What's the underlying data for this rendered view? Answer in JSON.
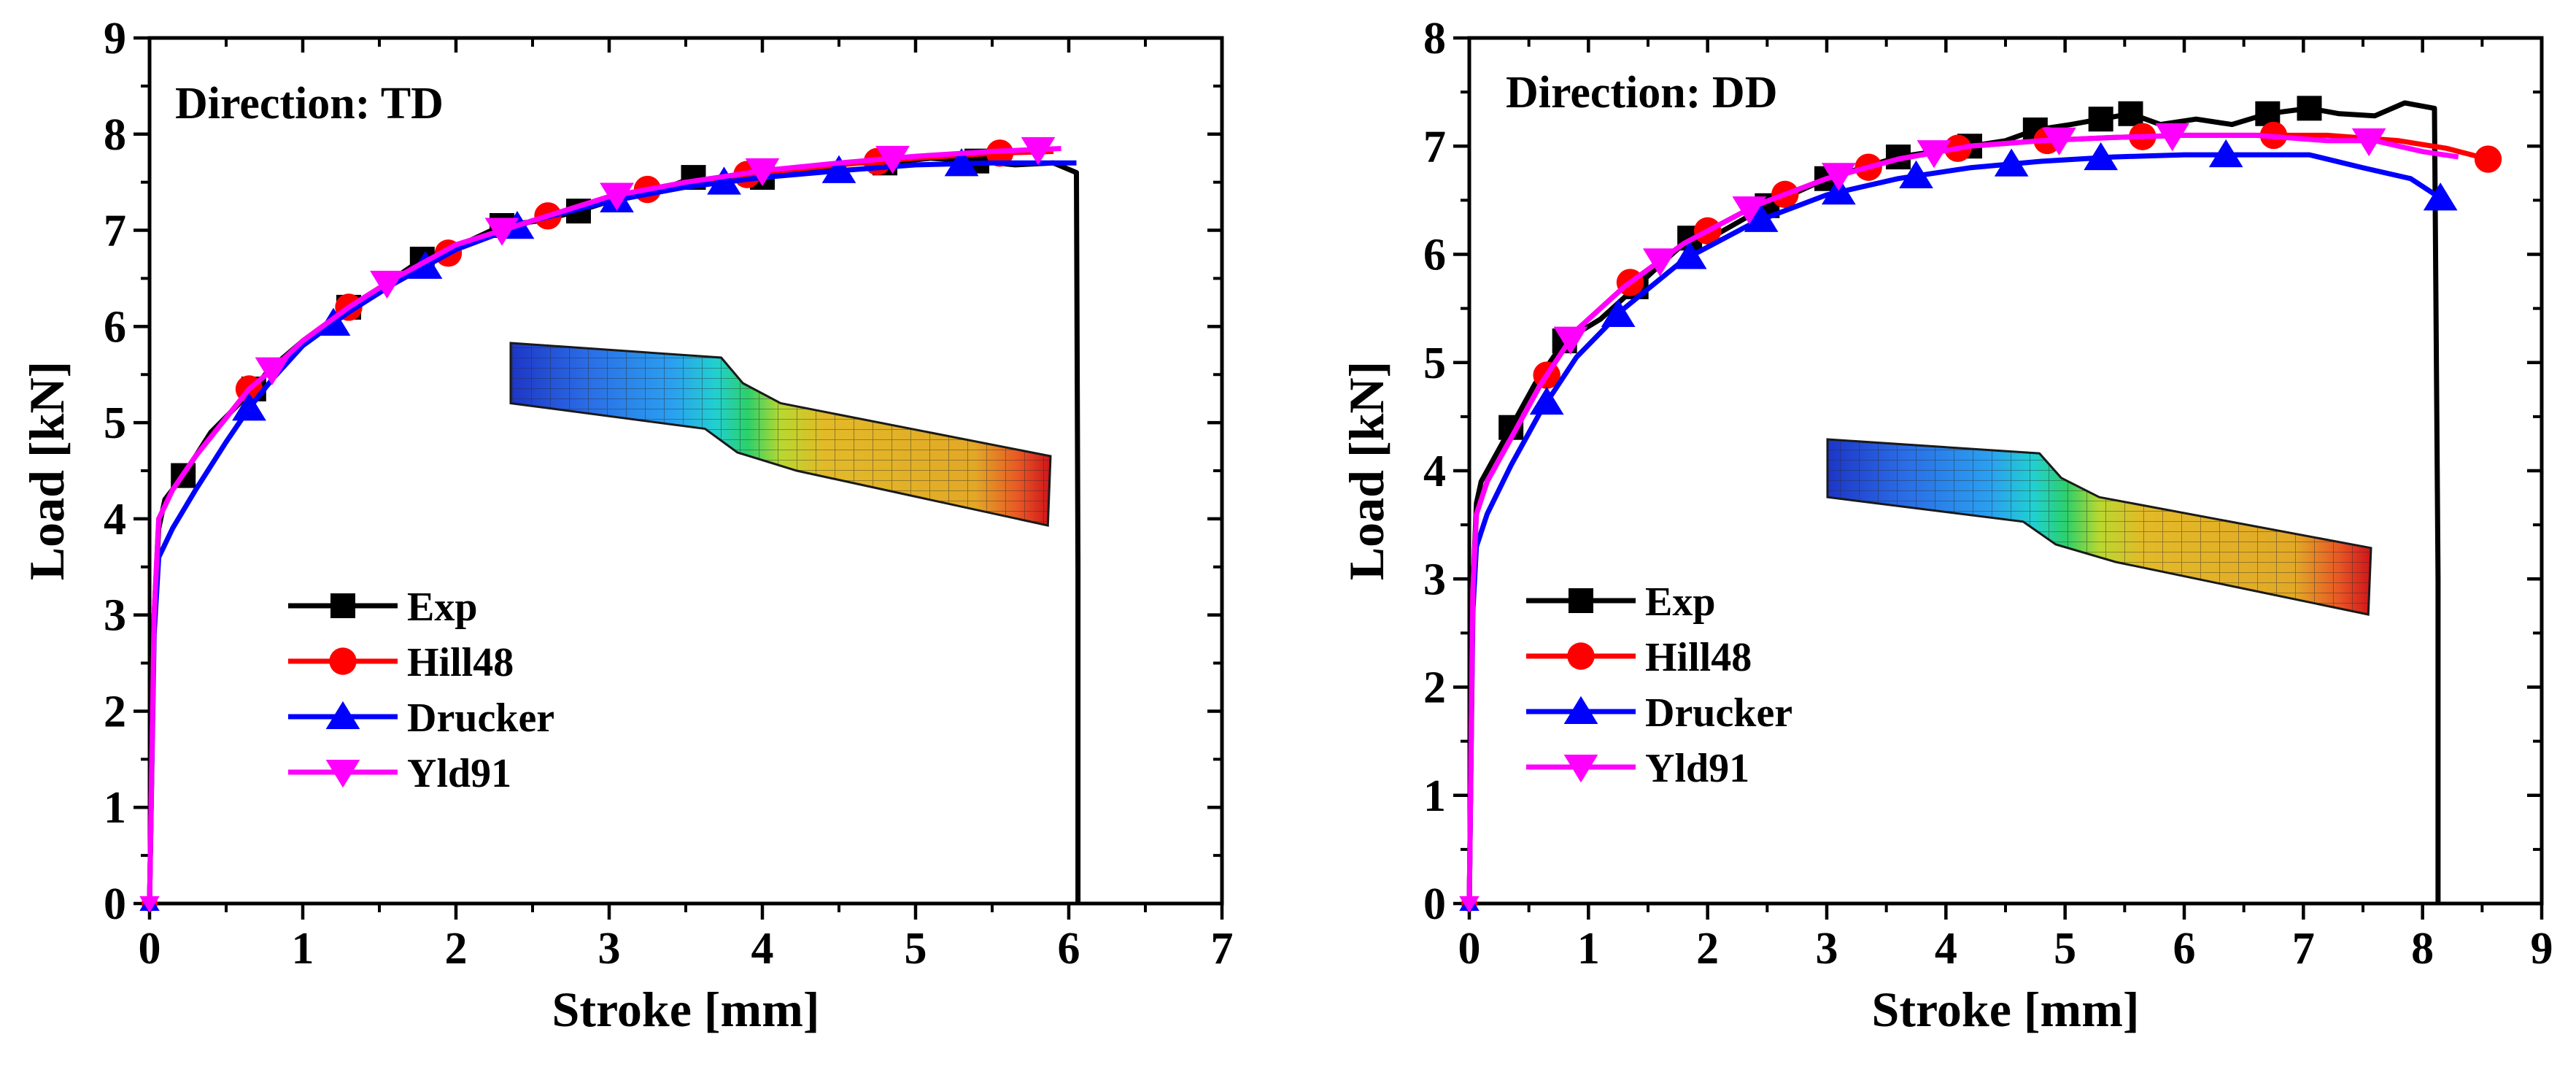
{
  "chart_data": [
    {
      "type": "line",
      "annotation": "Direction: TD",
      "xlabel": "Stroke [mm]",
      "ylabel": "Load [kN]",
      "xlim": [
        0,
        7
      ],
      "ylim": [
        0,
        9
      ],
      "xticks": [
        0,
        1,
        2,
        3,
        4,
        5,
        6,
        7
      ],
      "yticks": [
        0,
        1,
        2,
        3,
        4,
        5,
        6,
        7,
        8,
        9
      ],
      "legend_position": "center-left",
      "inset": "finite-element specimen mesh contour (decorative)",
      "series": [
        {
          "name": "Exp",
          "color": "#000000",
          "marker": "square",
          "x": [
            0,
            0.03,
            0.06,
            0.1,
            0.22,
            0.4,
            0.68,
            0.78,
            1.0,
            1.3,
            1.55,
            1.78,
            2.1,
            2.3,
            2.55,
            2.8,
            3.1,
            3.3,
            3.55,
            3.75,
            4.0,
            4.3,
            4.55,
            4.8,
            5.1,
            5.4,
            5.65,
            5.9,
            6.05,
            6.06,
            6.06
          ],
          "y": [
            0,
            3.0,
            3.9,
            4.2,
            4.45,
            4.9,
            5.35,
            5.55,
            5.85,
            6.2,
            6.45,
            6.7,
            6.9,
            7.05,
            7.1,
            7.2,
            7.35,
            7.4,
            7.55,
            7.5,
            7.55,
            7.6,
            7.7,
            7.7,
            7.75,
            7.72,
            7.68,
            7.7,
            7.6,
            3.5,
            0
          ],
          "marker_x": [
            0.22,
            0.68,
            1.3,
            1.78,
            2.3,
            2.8,
            3.55,
            4.0,
            4.8,
            5.4
          ]
        },
        {
          "name": "Hill48",
          "color": "#ff0000",
          "marker": "circle",
          "x": [
            0,
            0.03,
            0.06,
            0.15,
            0.3,
            0.5,
            0.65,
            0.8,
            1.0,
            1.3,
            1.6,
            2.0,
            2.5,
            3.0,
            3.5,
            4.0,
            4.5,
            5.0,
            5.5,
            5.9
          ],
          "y": [
            0,
            3.0,
            4.0,
            4.3,
            4.65,
            5.05,
            5.35,
            5.55,
            5.85,
            6.2,
            6.5,
            6.8,
            7.1,
            7.35,
            7.5,
            7.6,
            7.68,
            7.75,
            7.8,
            7.82
          ],
          "marker_x": [
            0.65,
            1.3,
            1.95,
            2.6,
            3.25,
            3.9,
            4.75,
            5.55
          ]
        },
        {
          "name": "Drucker",
          "color": "#0000ff",
          "marker": "triangle-up",
          "x": [
            0,
            0.03,
            0.06,
            0.15,
            0.3,
            0.5,
            0.65,
            0.8,
            1.0,
            1.3,
            1.6,
            2.0,
            2.5,
            3.0,
            3.5,
            4.0,
            4.5,
            5.0,
            5.5,
            6.05
          ],
          "y": [
            0,
            2.8,
            3.6,
            3.9,
            4.3,
            4.8,
            5.15,
            5.45,
            5.8,
            6.15,
            6.45,
            6.8,
            7.1,
            7.3,
            7.45,
            7.55,
            7.62,
            7.68,
            7.7,
            7.7
          ],
          "marker_x": [
            0.65,
            1.2,
            1.8,
            2.4,
            3.05,
            3.75,
            4.5,
            5.3
          ]
        },
        {
          "name": "Yld91",
          "color": "#ff00ff",
          "marker": "triangle-down",
          "x": [
            0,
            0.03,
            0.06,
            0.15,
            0.3,
            0.5,
            0.65,
            0.8,
            1.0,
            1.3,
            1.6,
            2.0,
            2.5,
            3.0,
            3.5,
            4.0,
            4.5,
            5.0,
            5.5,
            5.95
          ],
          "y": [
            0,
            3.0,
            4.0,
            4.3,
            4.65,
            5.05,
            5.35,
            5.55,
            5.85,
            6.2,
            6.5,
            6.85,
            7.1,
            7.35,
            7.5,
            7.62,
            7.7,
            7.77,
            7.82,
            7.85
          ],
          "marker_x": [
            0.8,
            1.55,
            2.3,
            3.05,
            4.0,
            4.85,
            5.8
          ]
        }
      ]
    },
    {
      "type": "line",
      "annotation": "Direction: DD",
      "xlabel": "Stroke [mm]",
      "ylabel": "Load [kN]",
      "xlim": [
        0,
        9
      ],
      "ylim": [
        0,
        8
      ],
      "xticks": [
        0,
        1,
        2,
        3,
        4,
        5,
        6,
        7,
        8,
        9
      ],
      "yticks": [
        0,
        1,
        2,
        3,
        4,
        5,
        6,
        7,
        8
      ],
      "legend_position": "center-left",
      "inset": "finite-element specimen mesh contour (decorative)",
      "series": [
        {
          "name": "Exp",
          "color": "#000000",
          "marker": "square",
          "x": [
            0,
            0.03,
            0.06,
            0.1,
            0.35,
            0.55,
            0.8,
            1.1,
            1.4,
            1.6,
            1.85,
            2.1,
            2.5,
            2.8,
            3.0,
            3.3,
            3.6,
            3.9,
            4.2,
            4.5,
            4.75,
            5.05,
            5.3,
            5.55,
            5.8,
            6.1,
            6.4,
            6.7,
            7.05,
            7.3,
            7.6,
            7.85,
            8.1,
            8.13,
            8.13
          ],
          "y": [
            0,
            2.9,
            3.7,
            3.9,
            4.4,
            4.8,
            5.2,
            5.4,
            5.7,
            5.9,
            6.15,
            6.2,
            6.45,
            6.6,
            6.7,
            6.8,
            6.9,
            6.95,
            7.0,
            7.05,
            7.15,
            7.2,
            7.25,
            7.3,
            7.2,
            7.25,
            7.2,
            7.3,
            7.35,
            7.3,
            7.28,
            7.4,
            7.35,
            3.0,
            0
          ],
          "marker_x": [
            0.35,
            0.8,
            1.4,
            1.85,
            2.5,
            3.0,
            3.6,
            4.2,
            4.75,
            5.3,
            5.55,
            6.7,
            7.05
          ]
        },
        {
          "name": "Hill48",
          "color": "#ff0000",
          "marker": "circle",
          "x": [
            0,
            0.03,
            0.06,
            0.15,
            0.35,
            0.6,
            0.9,
            1.3,
            1.8,
            2.4,
            3.0,
            3.6,
            4.2,
            4.8,
            5.4,
            6.0,
            6.6,
            7.2,
            7.8,
            8.2,
            8.55
          ],
          "y": [
            0,
            2.9,
            3.6,
            3.9,
            4.3,
            4.8,
            5.3,
            5.7,
            6.1,
            6.45,
            6.7,
            6.88,
            7.0,
            7.05,
            7.08,
            7.1,
            7.1,
            7.1,
            7.05,
            6.98,
            6.88
          ],
          "marker_x": [
            0.65,
            1.35,
            2.0,
            2.65,
            3.35,
            4.1,
            4.85,
            5.65,
            6.75,
            8.55
          ]
        },
        {
          "name": "Drucker",
          "color": "#0000ff",
          "marker": "triangle-up",
          "x": [
            0,
            0.03,
            0.06,
            0.15,
            0.35,
            0.6,
            0.9,
            1.3,
            1.8,
            2.4,
            3.0,
            3.6,
            4.2,
            4.8,
            5.4,
            6.0,
            6.6,
            7.05,
            7.5,
            7.9,
            8.15
          ],
          "y": [
            0,
            2.7,
            3.3,
            3.6,
            4.05,
            4.55,
            5.05,
            5.5,
            5.95,
            6.3,
            6.55,
            6.7,
            6.8,
            6.86,
            6.9,
            6.92,
            6.92,
            6.92,
            6.8,
            6.7,
            6.52
          ],
          "marker_x": [
            0.65,
            1.25,
            1.85,
            2.45,
            3.1,
            3.75,
            4.55,
            5.3,
            6.35,
            8.15
          ]
        },
        {
          "name": "Yld91",
          "color": "#ff00ff",
          "marker": "triangle-down",
          "x": [
            0,
            0.03,
            0.06,
            0.15,
            0.35,
            0.6,
            0.9,
            1.3,
            1.8,
            2.4,
            3.0,
            3.6,
            4.2,
            4.8,
            5.4,
            6.0,
            6.6,
            7.2,
            7.6,
            8.0,
            8.3
          ],
          "y": [
            0,
            2.9,
            3.6,
            3.9,
            4.3,
            4.8,
            5.3,
            5.7,
            6.1,
            6.45,
            6.7,
            6.88,
            7.0,
            7.05,
            7.08,
            7.1,
            7.1,
            7.05,
            7.05,
            6.95,
            6.9
          ],
          "marker_x": [
            0.85,
            1.6,
            2.35,
            3.1,
            3.9,
            4.95,
            5.9,
            7.55
          ]
        }
      ]
    }
  ]
}
